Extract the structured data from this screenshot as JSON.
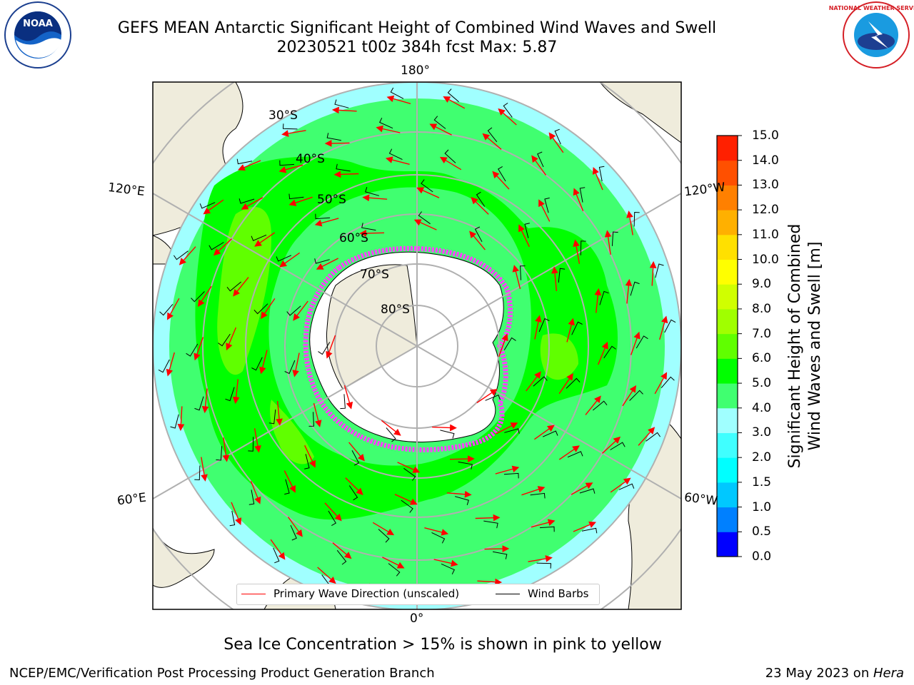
{
  "title": {
    "line1": "GEFS MEAN Antarctic Significant Height of Combined Wind Waves and Swell",
    "line2": "20230521 t00z 384h fcst   Max: 5.87"
  },
  "logos": {
    "left": {
      "icon": "noaa-logo",
      "text": "NOAA",
      "ring_text": "NATIONAL OCEANIC AND ATMOSPHERIC ADMINISTRATION · U.S. DEPARTMENT OF COMMERCE"
    },
    "right": {
      "icon": "nws-logo",
      "ring_text": "NATIONAL WEATHER SERVICE"
    }
  },
  "map": {
    "projection": "south-polar-stereographic",
    "lon_labels": {
      "top": "180°",
      "bottom": "0°",
      "upper_left": "120°E",
      "upper_right": "120°W",
      "lower_left": "60°E",
      "lower_right": "60°W"
    },
    "lat_labels": [
      "30°S",
      "40°S",
      "50°S",
      "60°S",
      "70°S",
      "80°S"
    ],
    "colors": {
      "land": "#efecdc",
      "ice_sheet": "#ffffff",
      "grid": "#b0b0b0",
      "sea_ice": "#ff40ff",
      "wave_arrow": "#ff0000",
      "wind_barb": "#000000"
    }
  },
  "colorbar": {
    "label": "Significant Height of Combined\nWind Waves and Swell [m]",
    "label_line1": "Significant Height of Combined",
    "label_line2": "Wind Waves and Swell [m]",
    "ticks": [
      "0.0",
      "0.5",
      "1.0",
      "1.5",
      "2.0",
      "3.0",
      "4.0",
      "5.0",
      "6.0",
      "7.0",
      "8.0",
      "9.0",
      "10.0",
      "11.0",
      "12.0",
      "13.0",
      "14.0",
      "15.0"
    ],
    "colors": [
      "#0000ff",
      "#0080ff",
      "#00c8ff",
      "#00ffff",
      "#40ffff",
      "#a0ffff",
      "#40ff70",
      "#00ff00",
      "#60ff00",
      "#a0ff00",
      "#d0ff00",
      "#ffff00",
      "#ffe000",
      "#ffb000",
      "#ff8000",
      "#ff5000",
      "#ff2000"
    ]
  },
  "legend": {
    "items": [
      {
        "label": "Primary Wave Direction (unscaled)",
        "color": "#ff0000"
      },
      {
        "label": "Wind Barbs",
        "color": "#000000"
      }
    ]
  },
  "note": "Sea Ice Concentration > 15% is shown in pink to yellow",
  "footer": {
    "left": "NCEP/EMC/Verification Post Processing Product Generation Branch",
    "right_date": "23 May 2023 on ",
    "right_host": "Hera"
  }
}
